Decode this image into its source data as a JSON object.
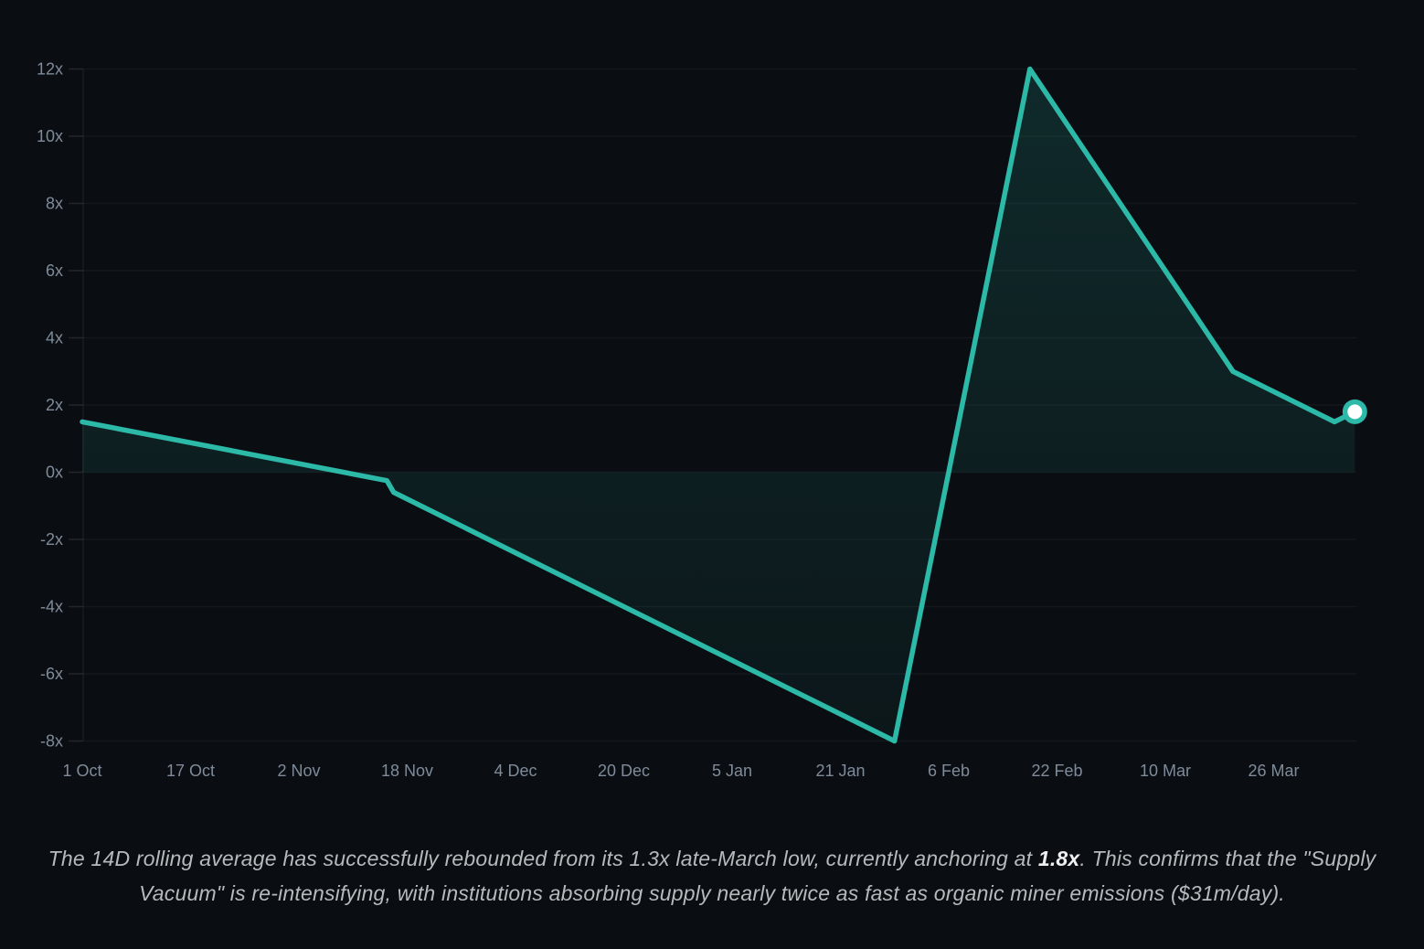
{
  "caption": {
    "before": "The 14D rolling average has successfully rebounded from its 1.3x late-March low, currently anchoring at ",
    "highlight": "1.8x",
    "after": ". This confirms that the \"Supply Vacuum\" is re-intensifying, with institutions absorbing supply nearly twice as fast as organic miner emissions ($31m/day)."
  },
  "colors": {
    "accent": "#2cb9a8",
    "background": "#0a0e12",
    "grid": "rgba(255,255,255,0.045)",
    "tick_stub": "rgba(255,255,255,0.10)",
    "axis_line": "rgba(255,255,255,0.055)",
    "axis_label": "#7f8b9a",
    "caption_text": "#b7babd",
    "caption_highlight": "#edeff0",
    "marker_center": "#ffffff",
    "area_top": "rgba(44,185,168,0.16)",
    "area_bottom": "rgba(44,185,168,0.05)"
  },
  "chart_data": {
    "type": "area",
    "title": "",
    "xlabel": "",
    "ylabel": "",
    "legend": "none",
    "grid": "horizontal",
    "baseline": 0,
    "ylim": [
      -8,
      12
    ],
    "y_ticks": [
      {
        "label": "12x",
        "value": 12
      },
      {
        "label": "10x",
        "value": 10
      },
      {
        "label": "8x",
        "value": 8
      },
      {
        "label": "6x",
        "value": 6
      },
      {
        "label": "4x",
        "value": 4
      },
      {
        "label": "2x",
        "value": 2
      },
      {
        "label": "0x",
        "value": 0
      },
      {
        "label": "-2x",
        "value": -2
      },
      {
        "label": "-4x",
        "value": -4
      },
      {
        "label": "-6x",
        "value": -6
      },
      {
        "label": "-8x",
        "value": -8
      }
    ],
    "x_ticks": [
      {
        "label": "1 Oct",
        "day": 0
      },
      {
        "label": "17 Oct",
        "day": 16
      },
      {
        "label": "2 Nov",
        "day": 32
      },
      {
        "label": "18 Nov",
        "day": 48
      },
      {
        "label": "4 Dec",
        "day": 64
      },
      {
        "label": "20 Dec",
        "day": 80
      },
      {
        "label": "5 Jan",
        "day": 96
      },
      {
        "label": "21 Jan",
        "day": 112
      },
      {
        "label": "6 Feb",
        "day": 128
      },
      {
        "label": "22 Feb",
        "day": 144
      },
      {
        "label": "10 Mar",
        "day": 160
      },
      {
        "label": "26 Mar",
        "day": 176
      }
    ],
    "series": [
      {
        "name": "14D rolling average",
        "points": [
          {
            "date": "1 Oct",
            "day": 0,
            "value": 1.5
          },
          {
            "date": "15 Nov",
            "day": 45,
            "value": -0.25
          },
          {
            "date": "16 Nov",
            "day": 46,
            "value": -0.6
          },
          {
            "date": "29 Jan",
            "day": 120,
            "value": -8.0
          },
          {
            "date": "18 Feb",
            "day": 140,
            "value": 12.0
          },
          {
            "date": "20 Mar",
            "day": 170,
            "value": 3.0
          },
          {
            "date": "4 Apr",
            "day": 185,
            "value": 1.5
          },
          {
            "date": "7 Apr",
            "day": 188,
            "value": 1.8
          }
        ]
      }
    ],
    "last_value_marker": {
      "value": 1.8,
      "shape": "circle-white-with-teal-ring"
    }
  }
}
